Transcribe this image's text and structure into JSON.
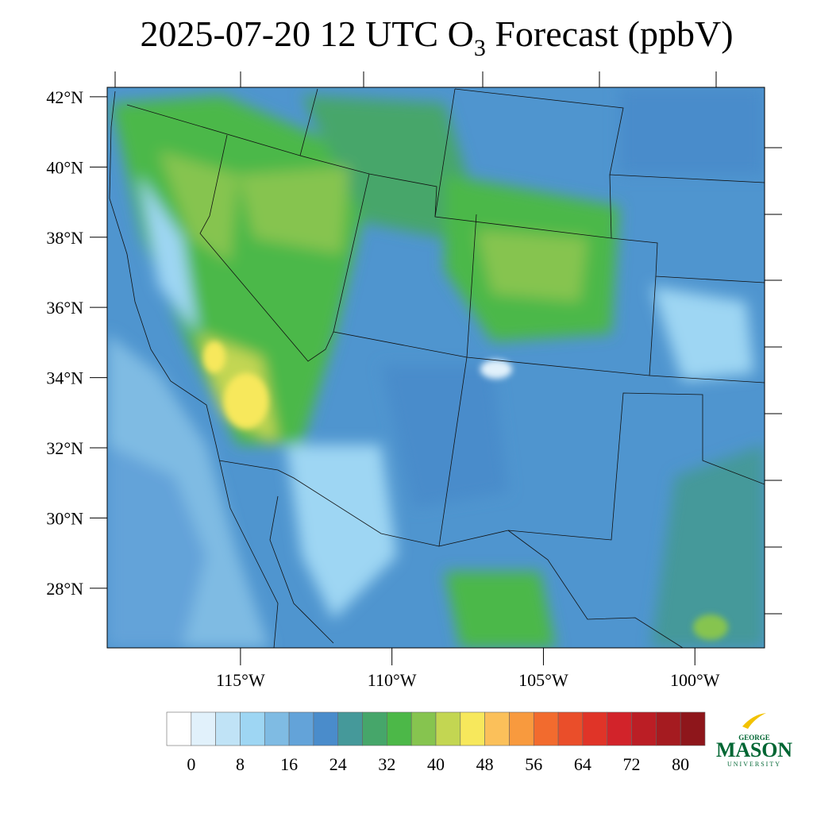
{
  "title": {
    "main": "2025-07-20 12 UTC O",
    "subscript": "3",
    "tail": " Forecast (ppbV)"
  },
  "map": {
    "ylim": [
      26.3,
      42.27
    ],
    "xlim": [
      -119.4,
      -97.7
    ],
    "lat_ticks": [
      {
        "value": 42,
        "label": "42°N"
      },
      {
        "value": 40,
        "label": "40°N"
      },
      {
        "value": 38,
        "label": "38°N"
      },
      {
        "value": 36,
        "label": "36°N"
      },
      {
        "value": 34,
        "label": "34°N"
      },
      {
        "value": 32,
        "label": "32°N"
      },
      {
        "value": 30,
        "label": "30°N"
      },
      {
        "value": 28,
        "label": "28°N"
      }
    ],
    "lon_ticks": [
      {
        "value": -115,
        "label": "115°W"
      },
      {
        "value": -110,
        "label": "110°W"
      },
      {
        "value": -105,
        "label": "105°W"
      },
      {
        "value": -100,
        "label": "100°W"
      }
    ]
  },
  "colorbar": {
    "range": [
      -4,
      84
    ],
    "colors": [
      "#ffffff",
      "#e1f1fb",
      "#c0e3f6",
      "#9ed6f3",
      "#7fbbe3",
      "#63a3d9",
      "#4a8ccb",
      "#45999a",
      "#46a66a",
      "#4cb848",
      "#86c44f",
      "#c3d652",
      "#f7e85c",
      "#fbc05a",
      "#f89a3e",
      "#f26b2e",
      "#ea4e2a",
      "#e03428",
      "#d2232a",
      "#bb1e25",
      "#a51b20",
      "#8e161b"
    ],
    "ticks": [
      0,
      8,
      16,
      24,
      32,
      40,
      48,
      56,
      64,
      72,
      80
    ]
  },
  "logo": {
    "top": "GEORGE",
    "name": "MASON",
    "bottom": "UNIVERSITY"
  }
}
